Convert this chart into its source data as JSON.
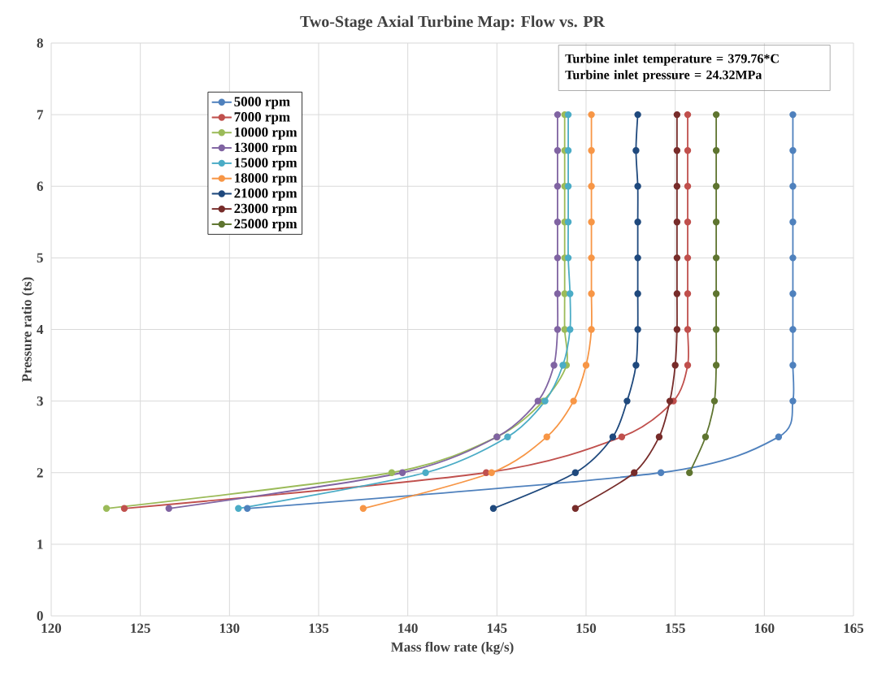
{
  "chart_data": {
    "type": "line",
    "title": "Two-Stage Axial Turbine Map: Flow vs. PR",
    "xlabel": "Mass flow rate (kg/s)",
    "ylabel": "Pressure ratio (ts)",
    "xlim": [
      120,
      165
    ],
    "ylim": [
      0,
      8
    ],
    "xticks": [
      120,
      125,
      130,
      135,
      140,
      145,
      150,
      155,
      160,
      165
    ],
    "yticks": [
      0,
      1,
      2,
      3,
      4,
      5,
      6,
      7,
      8
    ],
    "grid": true,
    "legend": "top left",
    "marker": "circle",
    "annotations": [
      "Turbine  inlet temperature  = 379.76*C",
      "Turbine  inlet pressure = 24.32MPa"
    ],
    "series": [
      {
        "name": "5000 rpm",
        "color": "#4f81bd",
        "x": [
          131.0,
          154.2,
          160.8,
          161.6,
          161.6,
          161.6,
          161.6,
          161.6,
          161.6,
          161.6,
          161.6,
          161.6
        ],
        "values": [
          1.5,
          2,
          2.5,
          3,
          3.5,
          4,
          4.5,
          5,
          5.5,
          6,
          6.5,
          7
        ]
      },
      {
        "name": "7000 rpm",
        "color": "#c0504d",
        "x": [
          124.1,
          144.4,
          152.0,
          154.9,
          155.7,
          155.7,
          155.7,
          155.7,
          155.7,
          155.7,
          155.7,
          155.7
        ],
        "values": [
          1.5,
          2,
          2.5,
          3,
          3.5,
          4,
          4.5,
          5,
          5.5,
          6,
          6.5,
          7
        ]
      },
      {
        "name": "10000 rpm",
        "color": "#9bbb59",
        "x": [
          123.1,
          139.1,
          145.0,
          147.6,
          148.9,
          148.8,
          148.8,
          148.8,
          148.8,
          148.8,
          148.8,
          148.8
        ],
        "values": [
          1.5,
          2,
          2.5,
          3,
          3.5,
          4,
          4.5,
          5,
          5.5,
          6,
          6.5,
          7
        ]
      },
      {
        "name": "13000 rpm",
        "color": "#8064a2",
        "x": [
          126.6,
          139.7,
          145.0,
          147.3,
          148.2,
          148.4,
          148.4,
          148.4,
          148.4,
          148.4,
          148.4,
          148.4
        ],
        "values": [
          1.5,
          2,
          2.5,
          3,
          3.5,
          4,
          4.5,
          5,
          5.5,
          6,
          6.5,
          7
        ]
      },
      {
        "name": "15000 rpm",
        "color": "#4bacc6",
        "x": [
          130.5,
          141.0,
          145.6,
          147.7,
          148.7,
          149.1,
          149.1,
          149.0,
          149.0,
          149.0,
          149.0,
          149.0
        ],
        "values": [
          1.5,
          2,
          2.5,
          3,
          3.5,
          4,
          4.5,
          5,
          5.5,
          6,
          6.5,
          7
        ]
      },
      {
        "name": "18000 rpm",
        "color": "#f79646",
        "x": [
          137.5,
          144.7,
          147.8,
          149.3,
          150.0,
          150.3,
          150.3,
          150.3,
          150.3,
          150.3,
          150.3,
          150.3
        ],
        "values": [
          1.5,
          2,
          2.5,
          3,
          3.5,
          4,
          4.5,
          5,
          5.5,
          6,
          6.5,
          7
        ]
      },
      {
        "name": "21000 rpm",
        "color": "#1f497d",
        "x": [
          144.8,
          149.4,
          151.5,
          152.3,
          152.8,
          152.9,
          152.9,
          152.9,
          152.9,
          152.9,
          152.8,
          152.9
        ],
        "values": [
          1.5,
          2,
          2.5,
          3,
          3.5,
          4,
          4.5,
          5,
          5.5,
          6,
          6.5,
          7
        ]
      },
      {
        "name": "23000 rpm",
        "color": "#772c2a",
        "x": [
          149.4,
          152.7,
          154.1,
          154.7,
          155.0,
          155.1,
          155.1,
          155.1,
          155.1,
          155.1,
          155.1,
          155.1
        ],
        "values": [
          1.5,
          2,
          2.5,
          3,
          3.5,
          4,
          4.5,
          5,
          5.5,
          6,
          6.5,
          7
        ]
      },
      {
        "name": "25000 rpm",
        "color": "#5f7530",
        "x": [
          155.8,
          156.7,
          157.2,
          157.3,
          157.3,
          157.3,
          157.3,
          157.3,
          157.3,
          157.3,
          157.3
        ],
        "values": [
          2,
          2.5,
          3,
          3.5,
          4,
          4.5,
          5,
          5.5,
          6,
          6.5,
          7
        ]
      }
    ]
  }
}
